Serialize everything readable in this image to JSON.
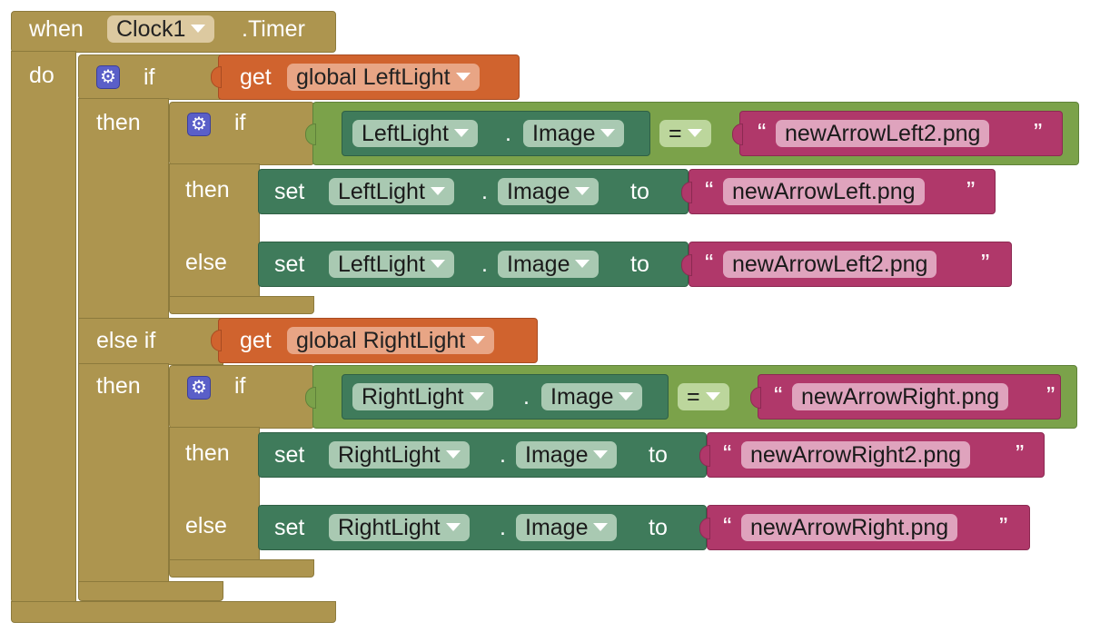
{
  "event": {
    "when": "when",
    "component": "Clock1",
    "event_name": ".Timer",
    "do": "do"
  },
  "outer_if": {
    "if": "if",
    "then": "then",
    "else_if": "else if",
    "cond1": {
      "get": "get",
      "var": "global LeftLight"
    },
    "cond2": {
      "get": "get",
      "var": "global RightLight"
    }
  },
  "left_if": {
    "if": "if",
    "then": "then",
    "else": "else",
    "compare": {
      "component": "LeftLight",
      "dot": ".",
      "prop": "Image",
      "op": "=",
      "text": "newArrowLeft2.png"
    },
    "set_then": {
      "set": "set",
      "component": "LeftLight",
      "dot": ".",
      "prop": "Image",
      "to": "to",
      "text": "newArrowLeft.png"
    },
    "set_else": {
      "set": "set",
      "component": "LeftLight",
      "dot": ".",
      "prop": "Image",
      "to": "to",
      "text": "newArrowLeft2.png"
    }
  },
  "right_if": {
    "if": "if",
    "then": "then",
    "else": "else",
    "compare": {
      "component": "RightLight",
      "dot": ".",
      "prop": "Image",
      "op": "=",
      "text": "newArrowRight.png"
    },
    "set_then": {
      "set": "set",
      "component": "RightLight",
      "dot": ".",
      "prop": "Image",
      "to": "to",
      "text": "newArrowRight2.png"
    },
    "set_else": {
      "set": "set",
      "component": "RightLight",
      "dot": ".",
      "prop": "Image",
      "to": "to",
      "text": "newArrowRight.png"
    }
  },
  "quotes": {
    "open": "“",
    "close": "”"
  },
  "colors": {
    "control": "#ad954f",
    "variable": "#d0632e",
    "logic": "#7ba24a",
    "component": "#3f7b5b",
    "text": "#b0386a",
    "mutator": "#5a5fc8"
  },
  "icons": {
    "mutator": "gear-icon",
    "dropdown": "chevron-down-icon"
  }
}
